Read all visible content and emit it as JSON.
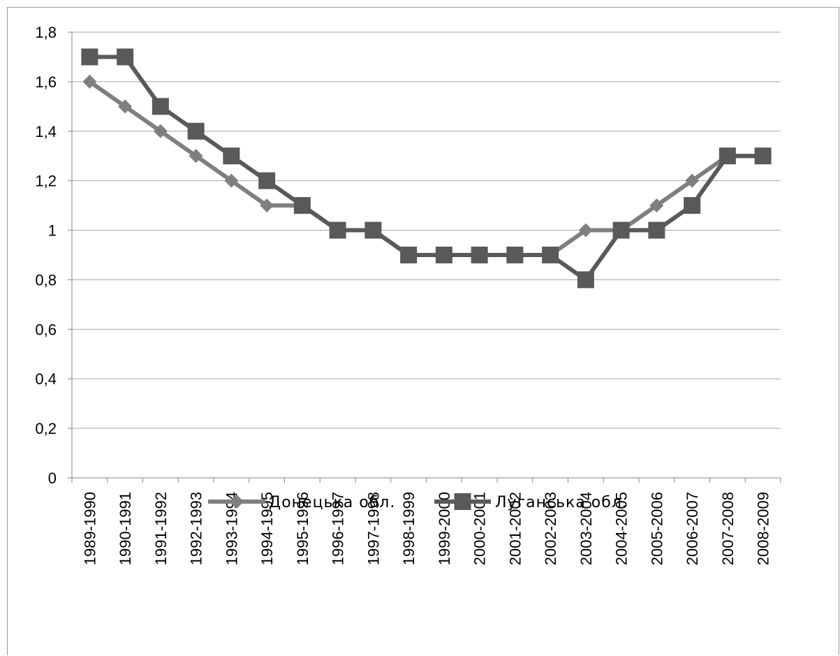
{
  "chart_data": {
    "type": "line",
    "title": "",
    "xlabel": "",
    "ylabel": "",
    "ylim": [
      0,
      1.8
    ],
    "y_ticks": [
      "0",
      "0,2",
      "0,4",
      "0,6",
      "0,8",
      "1",
      "1,2",
      "1,4",
      "1,6",
      "1,8"
    ],
    "y_tick_values": [
      0,
      0.2,
      0.4,
      0.6,
      0.8,
      1.0,
      1.2,
      1.4,
      1.6,
      1.8
    ],
    "grid": "horizontal",
    "legend_position": "bottom",
    "categories": [
      "1989-1990",
      "1990-1991",
      "1991-1992",
      "1992-1993",
      "1993-1994",
      "1994-1995",
      "1995-1996",
      "1996-1997",
      "1997-1998",
      "1998-1999",
      "1999-2000",
      "2000-2001",
      "2001-2002",
      "2002-2003",
      "2003-2004",
      "2004-2005",
      "2005-2006",
      "2006-2007",
      "2007-2008",
      "2008-2009"
    ],
    "series": [
      {
        "name": "Донецька обл.",
        "marker": "diamond",
        "color": "#7f7f7f",
        "values": [
          1.6,
          1.5,
          1.4,
          1.3,
          1.2,
          1.1,
          1.1,
          1.0,
          1.0,
          0.9,
          0.9,
          0.9,
          0.9,
          0.9,
          1.0,
          1.0,
          1.1,
          1.2,
          1.3,
          1.3
        ]
      },
      {
        "name": "Луганська обл.",
        "marker": "square",
        "color": "#595959",
        "values": [
          1.7,
          1.7,
          1.5,
          1.4,
          1.3,
          1.2,
          1.1,
          1.0,
          1.0,
          0.9,
          0.9,
          0.9,
          0.9,
          0.9,
          0.8,
          1.0,
          1.0,
          1.1,
          1.3,
          1.3
        ]
      }
    ]
  },
  "colors": {
    "grid": "#a6a6a6",
    "axis": "#868686",
    "frame": "#9a9a9a"
  }
}
